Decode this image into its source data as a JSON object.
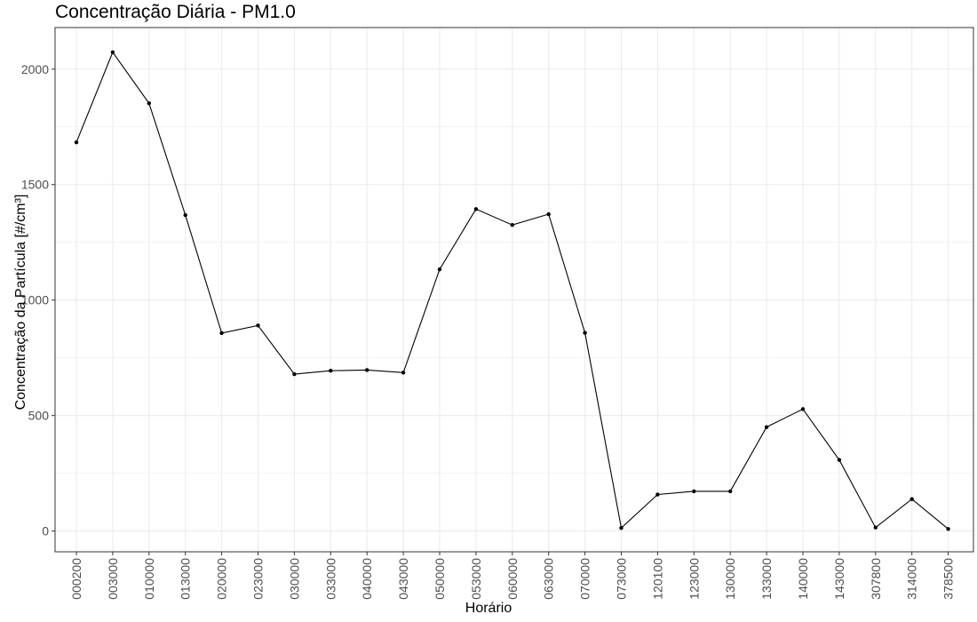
{
  "chart_data": {
    "type": "line",
    "title": "Concentração Diária - PM1.0",
    "xlabel": "Horário",
    "ylabel": "Concentração da Partícula [#/cm³]",
    "categories": [
      "000200",
      "003000",
      "010000",
      "013000",
      "020000",
      "023000",
      "030000",
      "033000",
      "040000",
      "043000",
      "050000",
      "053000",
      "060000",
      "063000",
      "070000",
      "073000",
      "120100",
      "123000",
      "130000",
      "133000",
      "140000",
      "143000",
      "307800",
      "314000",
      "378500"
    ],
    "series": [
      {
        "values": [
          1683,
          2073,
          1852,
          1368,
          857,
          890,
          679,
          694,
          697,
          686,
          1133,
          1394,
          1325,
          1372,
          858,
          13,
          158,
          172,
          172,
          450,
          528,
          308,
          15,
          138,
          9
        ]
      }
    ],
    "ylim": [
      -90,
      2180
    ],
    "yticks": [
      0,
      500,
      1000,
      1500,
      2000
    ],
    "grid": true,
    "legend": "none",
    "colors": {
      "line": "#000000",
      "grid": "#ebebeb",
      "panel_border": "#333333",
      "tick_text": "#4d4d4d"
    }
  }
}
